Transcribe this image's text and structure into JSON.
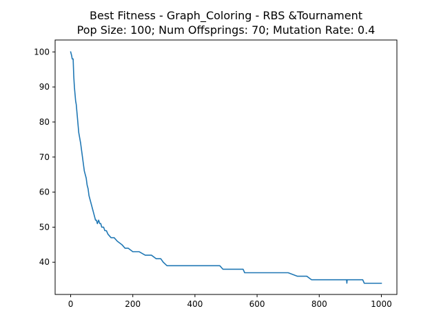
{
  "chart_data": {
    "type": "line",
    "title": "Best Fitness - Graph_Coloring - RBS &Tournament",
    "subtitle": "Pop Size: 100; Num Offsprings: 70; Mutation Rate: 0.4",
    "xlabel": "",
    "ylabel": "",
    "xlim": [
      -50,
      1050
    ],
    "ylim": [
      30.8,
      103.4
    ],
    "xticks": [
      0,
      200,
      400,
      600,
      800,
      1000
    ],
    "yticks": [
      40,
      50,
      60,
      70,
      80,
      90,
      100
    ],
    "grid": false,
    "series_color": "#1f77b4",
    "series": [
      {
        "x": [
          0,
          3,
          5,
          8,
          10,
          12,
          14,
          16,
          18,
          20,
          22,
          24,
          26,
          28,
          30,
          32,
          35,
          38,
          41,
          44,
          47,
          50,
          53,
          56,
          59,
          62,
          65,
          68,
          71,
          74,
          77,
          80,
          83,
          86,
          90,
          94,
          97,
          100,
          103,
          106,
          110,
          115,
          120,
          130,
          140,
          150,
          165,
          175,
          185,
          200,
          220,
          240,
          260,
          275,
          290,
          298,
          310,
          340,
          380,
          420,
          460,
          480,
          490,
          520,
          540,
          555,
          560,
          600,
          650,
          700,
          730,
          740,
          760,
          775,
          780,
          800,
          830,
          860,
          888,
          889,
          890,
          891,
          892,
          920,
          940,
          945,
          960,
          980,
          1000
        ],
        "y": [
          100,
          99,
          98,
          98,
          93,
          90,
          88,
          86,
          85,
          83,
          81,
          79,
          77,
          76,
          75,
          74,
          72,
          70,
          68,
          66,
          65,
          64,
          62,
          61,
          59,
          58,
          57,
          56,
          55,
          54,
          53,
          52,
          52,
          51,
          52,
          51,
          51,
          50,
          50,
          50,
          49,
          49,
          48,
          47,
          47,
          46,
          45,
          44,
          44,
          43,
          43,
          42,
          42,
          41,
          41,
          40,
          39,
          39,
          39,
          39,
          39,
          39,
          38,
          38,
          38,
          38,
          37,
          37,
          37,
          37,
          36,
          36,
          36,
          35,
          35,
          35,
          35,
          35,
          35,
          34,
          35,
          35,
          35,
          35,
          35,
          34,
          34,
          34,
          34
        ]
      }
    ]
  }
}
